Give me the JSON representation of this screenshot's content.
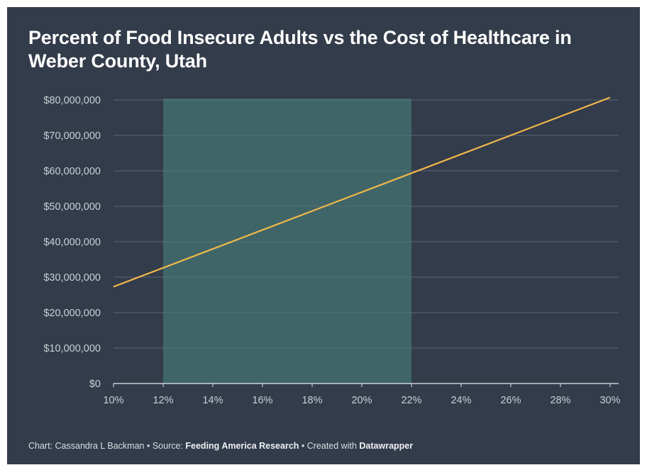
{
  "title": "Percent of Food Insecure Adults vs the Cost of Healthcare in Weber County, Utah",
  "footer": {
    "chart_label": "Chart: Cassandra L Backman",
    "sep1": " • Source: ",
    "source": "Feeding America Research",
    "sep2": " • Created with ",
    "tool": "Datawrapper"
  },
  "colors": {
    "background": "#333c4a",
    "line": "#f2b84b",
    "band": "#3f6568",
    "grid": "#6a7280",
    "text": "#c9cfd6"
  },
  "chart_data": {
    "type": "line",
    "x_ticks": [
      "10%",
      "12%",
      "14%",
      "16%",
      "18%",
      "20%",
      "22%",
      "24%",
      "26%",
      "28%",
      "30%"
    ],
    "y_ticks": [
      "$0",
      "$10,000,000",
      "$20,000,000",
      "$30,000,000",
      "$40,000,000",
      "$50,000,000",
      "$60,000,000",
      "$70,000,000",
      "$80,000,000"
    ],
    "xlim": [
      10,
      30
    ],
    "ylim": [
      0,
      80000000
    ],
    "series": [
      {
        "x": [
          10,
          30
        ],
        "y": [
          27300000,
          80700000
        ]
      }
    ],
    "highlight_range": {
      "x": [
        12,
        22
      ]
    },
    "grid": true
  }
}
